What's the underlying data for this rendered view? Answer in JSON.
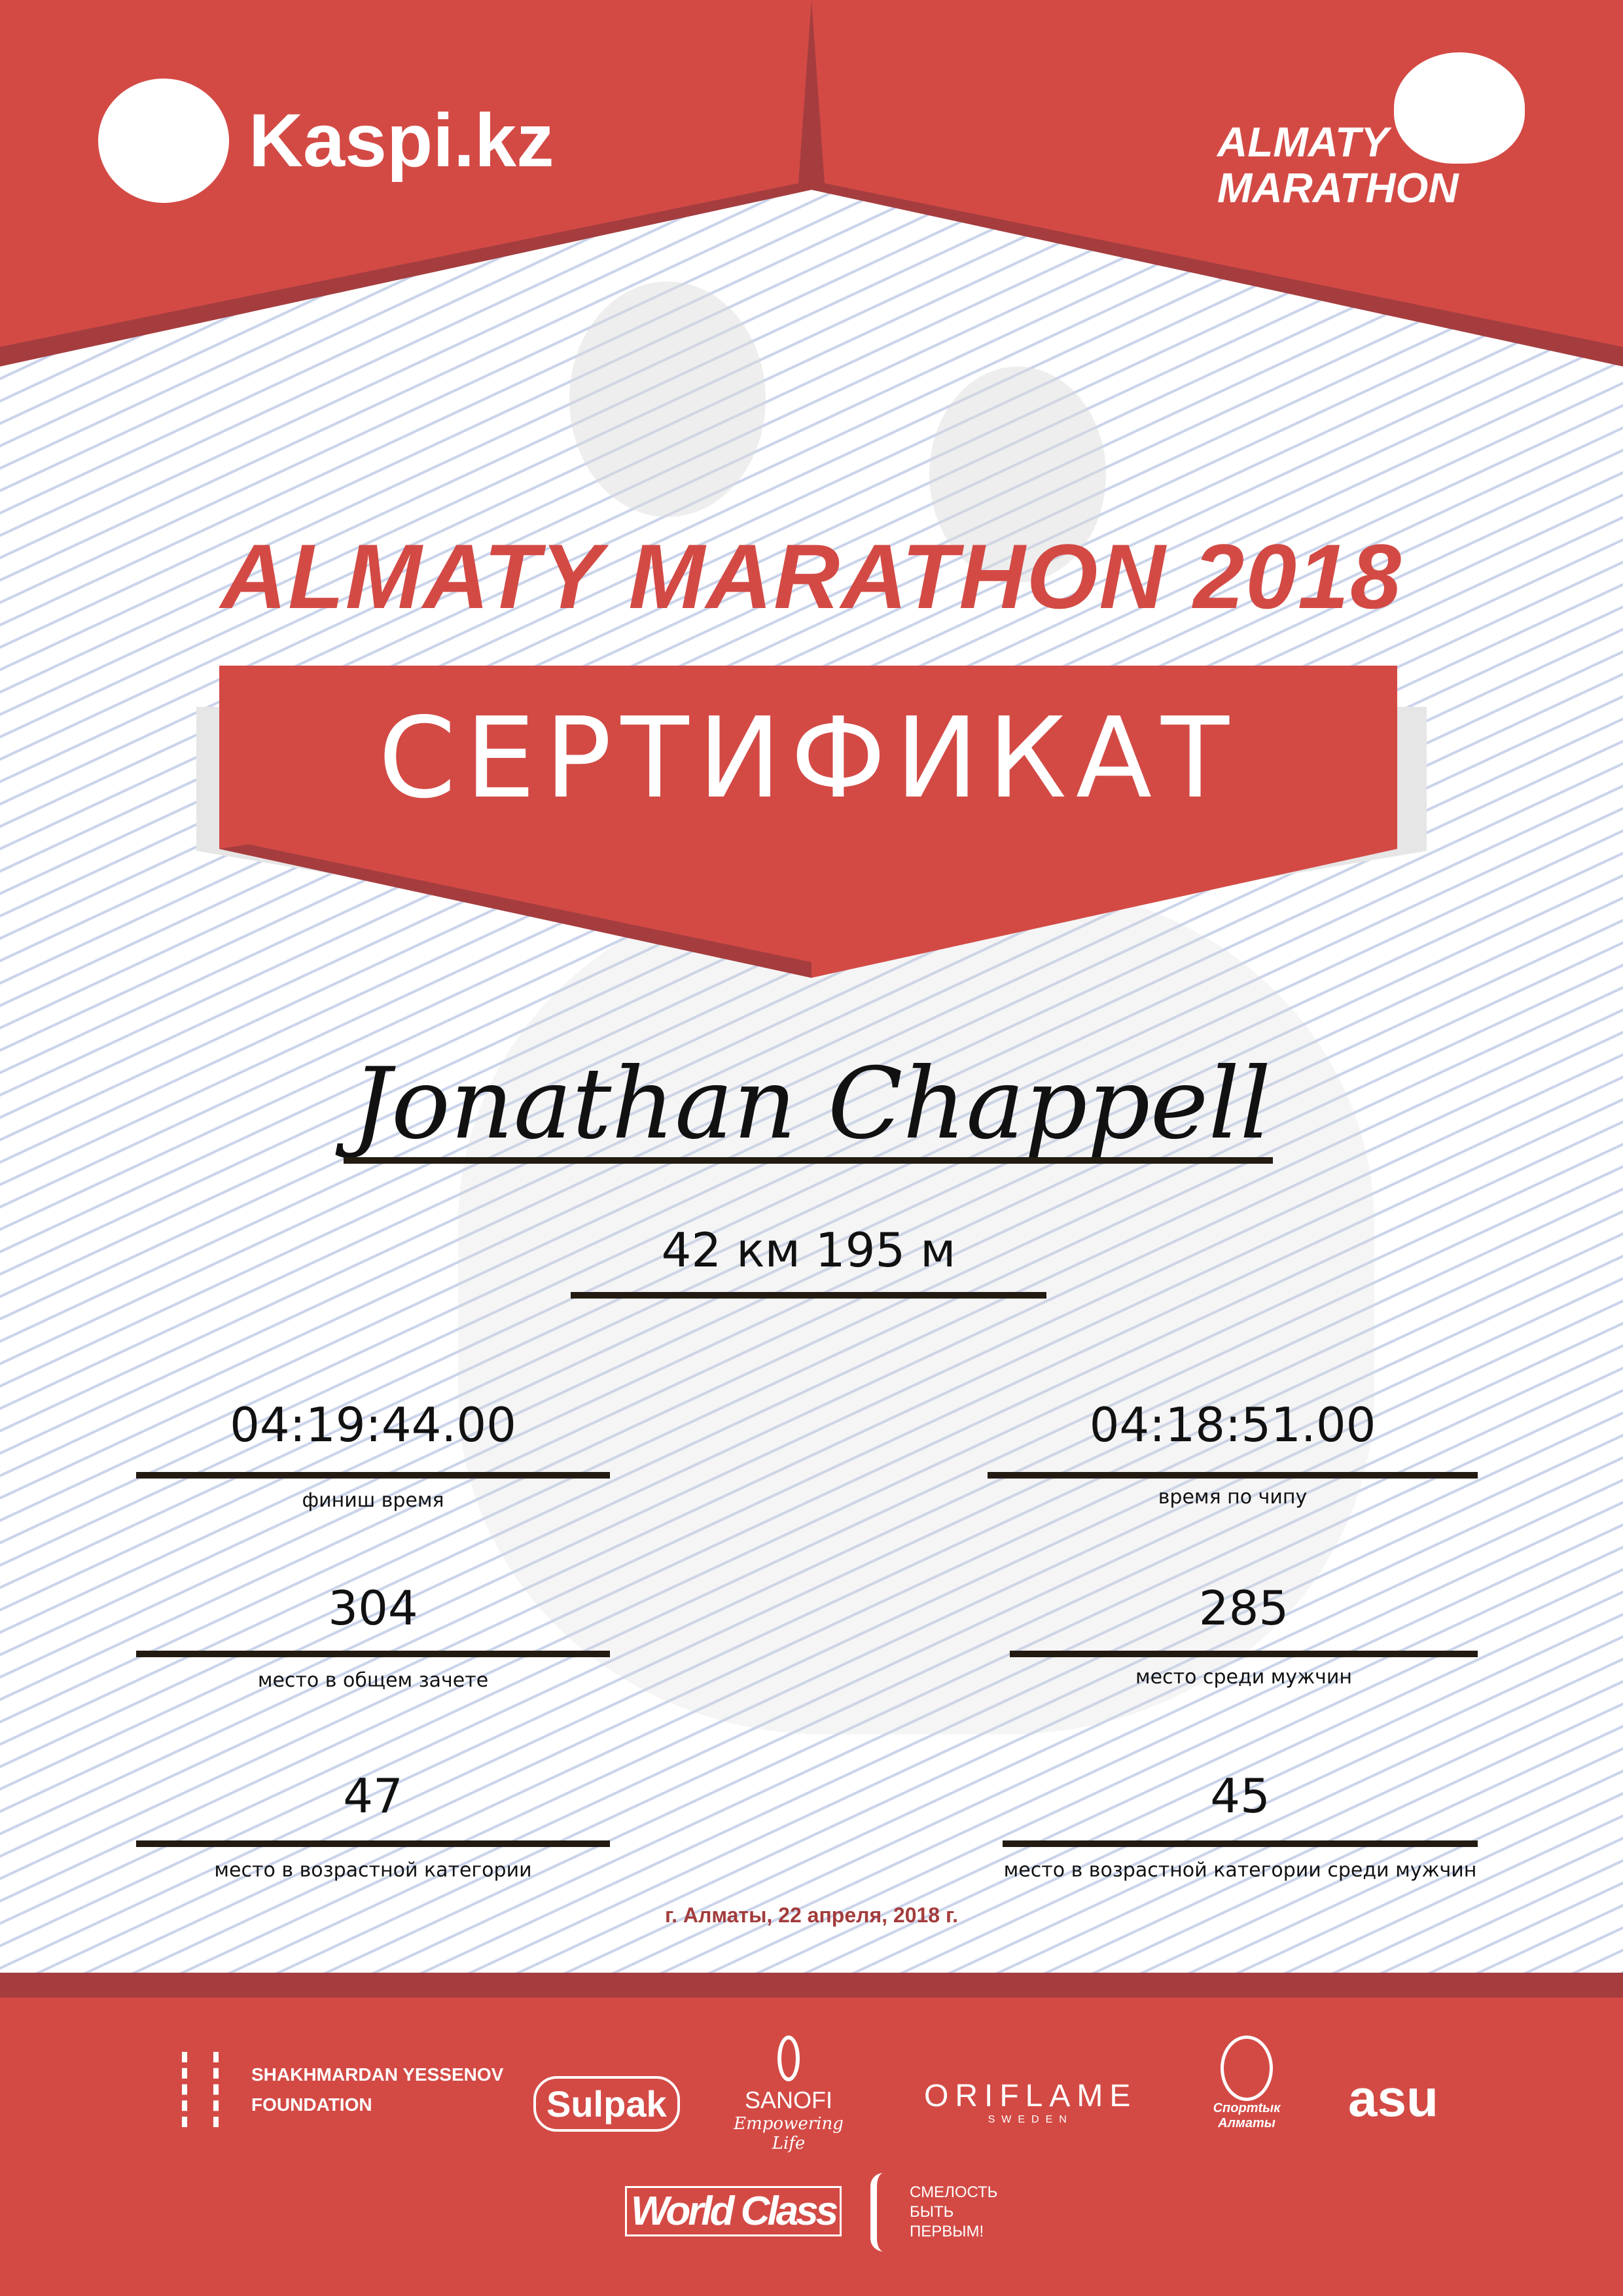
{
  "header": {
    "sponsor_logo": "Kaspi.kz",
    "event_logo_line1": "ALMATY",
    "event_logo_line2": "MARATHON"
  },
  "title": "ALMATY MARATHON 2018",
  "banner": "СЕРТИФИКАТ",
  "participant_name": "Jonathan Chappell",
  "distance": "42 км 195 м",
  "results": [
    {
      "value": "04:19:44.00",
      "label": "финиш время"
    },
    {
      "value": "04:18:51.00",
      "label": "время по чипу"
    },
    {
      "value": "304",
      "label": "место в общем зачете"
    },
    {
      "value": "285",
      "label": "место среди мужчин"
    },
    {
      "value": "47",
      "label": "место в возрастной категории"
    },
    {
      "value": "45",
      "label": "место в возрастной категории среди мужчин"
    }
  ],
  "date_line": "г. Алматы, 22 апреля, 2018 г.",
  "sponsors": {
    "yessenov_line1": "SHAKHMARDAN YESSENOV",
    "yessenov_line2": "FOUNDATION",
    "sulpak": "Sulpak",
    "sanofi": "SANOFI",
    "sanofi_tag": "Empowering Life",
    "oriflame": "ORIFLAME",
    "oriflame_sub": "SWEDEN",
    "sport": "Спортtык Алматы",
    "asu": "asu",
    "worldclass": "World Class",
    "brave_line1": "СМЕЛОСТЬ",
    "brave_line2": "БЫТЬ",
    "brave_line3": "ПЕРВЫМ!"
  },
  "colors": {
    "primary": "#d34a45",
    "dark": "#a53d3f",
    "text": "#111111"
  }
}
